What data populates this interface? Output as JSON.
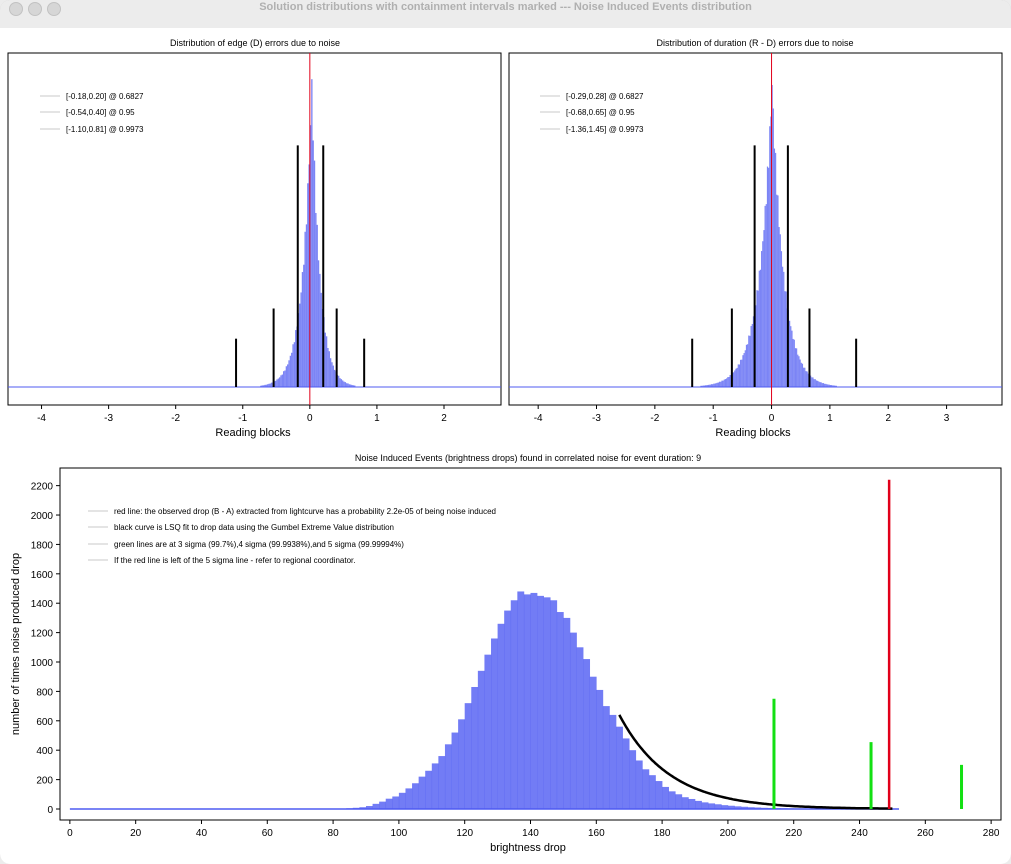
{
  "window": {
    "title": "Solution distributions with containment intervals marked --- Noise Induced Events distribution"
  },
  "colors": {
    "histogram": "#4f5bf2",
    "red_line": "#e1001a",
    "green_line": "#13e013",
    "black": "#000000"
  },
  "chart_data": [
    {
      "type": "bar",
      "title": "Distribution of edge (D) errors due to noise",
      "xlabel": "Reading blocks",
      "ylabel": "",
      "xlim": [
        -4.5,
        2.85
      ],
      "xticks": [
        -4,
        -3,
        -2,
        -1,
        0,
        1,
        2
      ],
      "histogram": {
        "center": 0.02,
        "height": 1.0,
        "scale_left": 0.14,
        "scale_right": 0.12
      },
      "marked_value": 0,
      "legend": [
        {
          "label": "[-0.18,0.20] @ 0.6827"
        },
        {
          "label": "[-0.54,0.40] @ 0.95"
        },
        {
          "label": "[-1.10,0.81] @ 0.9973"
        }
      ],
      "interval_lines": [
        {
          "x": -0.18,
          "height": 0.8
        },
        {
          "x": 0.2,
          "height": 0.8
        },
        {
          "x": -0.54,
          "height": 0.26
        },
        {
          "x": 0.4,
          "height": 0.26
        },
        {
          "x": -1.1,
          "height": 0.16
        },
        {
          "x": 0.81,
          "height": 0.16
        }
      ]
    },
    {
      "type": "bar",
      "title": "Distribution of duration (R - D) errors due to noise",
      "xlabel": "Reading blocks",
      "ylabel": "",
      "xlim": [
        -4.5,
        3.95
      ],
      "xticks": [
        -4,
        -3,
        -2,
        -1,
        0,
        1,
        2,
        3
      ],
      "histogram": {
        "center": 0.0,
        "height": 1.0,
        "scale_left": 0.22,
        "scale_right": 0.2
      },
      "marked_value": 0,
      "legend": [
        {
          "label": "[-0.29,0.28] @ 0.6827"
        },
        {
          "label": "[-0.68,0.65] @ 0.95"
        },
        {
          "label": "[-1.36,1.45] @ 0.9973"
        }
      ],
      "interval_lines": [
        {
          "x": -0.29,
          "height": 0.8
        },
        {
          "x": 0.28,
          "height": 0.8
        },
        {
          "x": -0.68,
          "height": 0.26
        },
        {
          "x": 0.65,
          "height": 0.26
        },
        {
          "x": -1.36,
          "height": 0.16
        },
        {
          "x": 1.45,
          "height": 0.16
        }
      ]
    },
    {
      "type": "bar",
      "title": "Noise Induced Events (brightness drops) found in correlated noise for event duration: 9",
      "xlabel": "brightness drop",
      "ylabel": "number of times noise produced drop",
      "xlim": [
        -3,
        283
      ],
      "ylim": [
        -75,
        2320
      ],
      "xticks": [
        0,
        20,
        40,
        60,
        80,
        100,
        120,
        140,
        160,
        180,
        200,
        220,
        240,
        260,
        280
      ],
      "yticks": [
        0,
        200,
        400,
        600,
        800,
        1000,
        1200,
        1400,
        1600,
        1800,
        2000,
        2200
      ],
      "histogram": {
        "bin_width": 2,
        "x_min": 0,
        "x_max": 252
      },
      "bins": [
        {
          "x": 82,
          "y": 3
        },
        {
          "x": 84,
          "y": 5
        },
        {
          "x": 86,
          "y": 8
        },
        {
          "x": 88,
          "y": 12
        },
        {
          "x": 90,
          "y": 20
        },
        {
          "x": 92,
          "y": 35
        },
        {
          "x": 94,
          "y": 50
        },
        {
          "x": 96,
          "y": 70
        },
        {
          "x": 98,
          "y": 85
        },
        {
          "x": 100,
          "y": 110
        },
        {
          "x": 102,
          "y": 140
        },
        {
          "x": 104,
          "y": 175
        },
        {
          "x": 106,
          "y": 220
        },
        {
          "x": 108,
          "y": 260
        },
        {
          "x": 110,
          "y": 310
        },
        {
          "x": 112,
          "y": 360
        },
        {
          "x": 114,
          "y": 440
        },
        {
          "x": 116,
          "y": 520
        },
        {
          "x": 118,
          "y": 610
        },
        {
          "x": 120,
          "y": 720
        },
        {
          "x": 122,
          "y": 830
        },
        {
          "x": 124,
          "y": 940
        },
        {
          "x": 126,
          "y": 1050
        },
        {
          "x": 128,
          "y": 1160
        },
        {
          "x": 130,
          "y": 1260
        },
        {
          "x": 132,
          "y": 1350
        },
        {
          "x": 134,
          "y": 1420
        },
        {
          "x": 136,
          "y": 1480
        },
        {
          "x": 138,
          "y": 1460
        },
        {
          "x": 140,
          "y": 1470
        },
        {
          "x": 142,
          "y": 1450
        },
        {
          "x": 144,
          "y": 1440
        },
        {
          "x": 146,
          "y": 1420
        },
        {
          "x": 148,
          "y": 1340
        },
        {
          "x": 150,
          "y": 1300
        },
        {
          "x": 152,
          "y": 1200
        },
        {
          "x": 154,
          "y": 1100
        },
        {
          "x": 156,
          "y": 1020
        },
        {
          "x": 158,
          "y": 900
        },
        {
          "x": 160,
          "y": 810
        },
        {
          "x": 162,
          "y": 700
        },
        {
          "x": 164,
          "y": 640
        },
        {
          "x": 166,
          "y": 560
        },
        {
          "x": 168,
          "y": 480
        },
        {
          "x": 170,
          "y": 400
        },
        {
          "x": 172,
          "y": 330
        },
        {
          "x": 174,
          "y": 270
        },
        {
          "x": 176,
          "y": 230
        },
        {
          "x": 178,
          "y": 190
        },
        {
          "x": 180,
          "y": 150
        },
        {
          "x": 182,
          "y": 120
        },
        {
          "x": 184,
          "y": 100
        },
        {
          "x": 186,
          "y": 80
        },
        {
          "x": 188,
          "y": 68
        },
        {
          "x": 190,
          "y": 55
        },
        {
          "x": 192,
          "y": 45
        },
        {
          "x": 194,
          "y": 38
        },
        {
          "x": 196,
          "y": 32
        },
        {
          "x": 198,
          "y": 26
        },
        {
          "x": 200,
          "y": 22
        },
        {
          "x": 202,
          "y": 18
        },
        {
          "x": 204,
          "y": 15
        },
        {
          "x": 206,
          "y": 12
        },
        {
          "x": 208,
          "y": 10
        },
        {
          "x": 210,
          "y": 8
        },
        {
          "x": 212,
          "y": 7
        },
        {
          "x": 214,
          "y": 6
        },
        {
          "x": 216,
          "y": 5
        },
        {
          "x": 218,
          "y": 4
        },
        {
          "x": 220,
          "y": 3
        },
        {
          "x": 222,
          "y": 3
        },
        {
          "x": 224,
          "y": 2
        },
        {
          "x": 226,
          "y": 2
        },
        {
          "x": 228,
          "y": 2
        },
        {
          "x": 230,
          "y": 1
        }
      ],
      "fit_curve": {
        "x_start": 167,
        "x_end": 250,
        "y_start": 640,
        "decay_length": 15.2
      },
      "observed_drop": {
        "x": 249,
        "y_top": 2240
      },
      "sigma_lines": [
        {
          "x": 214,
          "height": 750
        },
        {
          "x": 243.5,
          "height": 455
        },
        {
          "x": 271,
          "height": 300
        }
      ],
      "legend": [
        {
          "label": "red line: the observed drop (B - A) extracted from lightcurve has a probability 2.2e-05 of being noise induced"
        },
        {
          "label": "black curve is LSQ fit to drop data using the Gumbel Extreme Value distribution"
        },
        {
          "label": "green lines are at 3 sigma (99.7%),4 sigma (99.9938%),and 5 sigma (99.99994%)"
        },
        {
          "label": "If the red line is left of the 5 sigma line - refer to regional coordinator."
        }
      ]
    }
  ]
}
